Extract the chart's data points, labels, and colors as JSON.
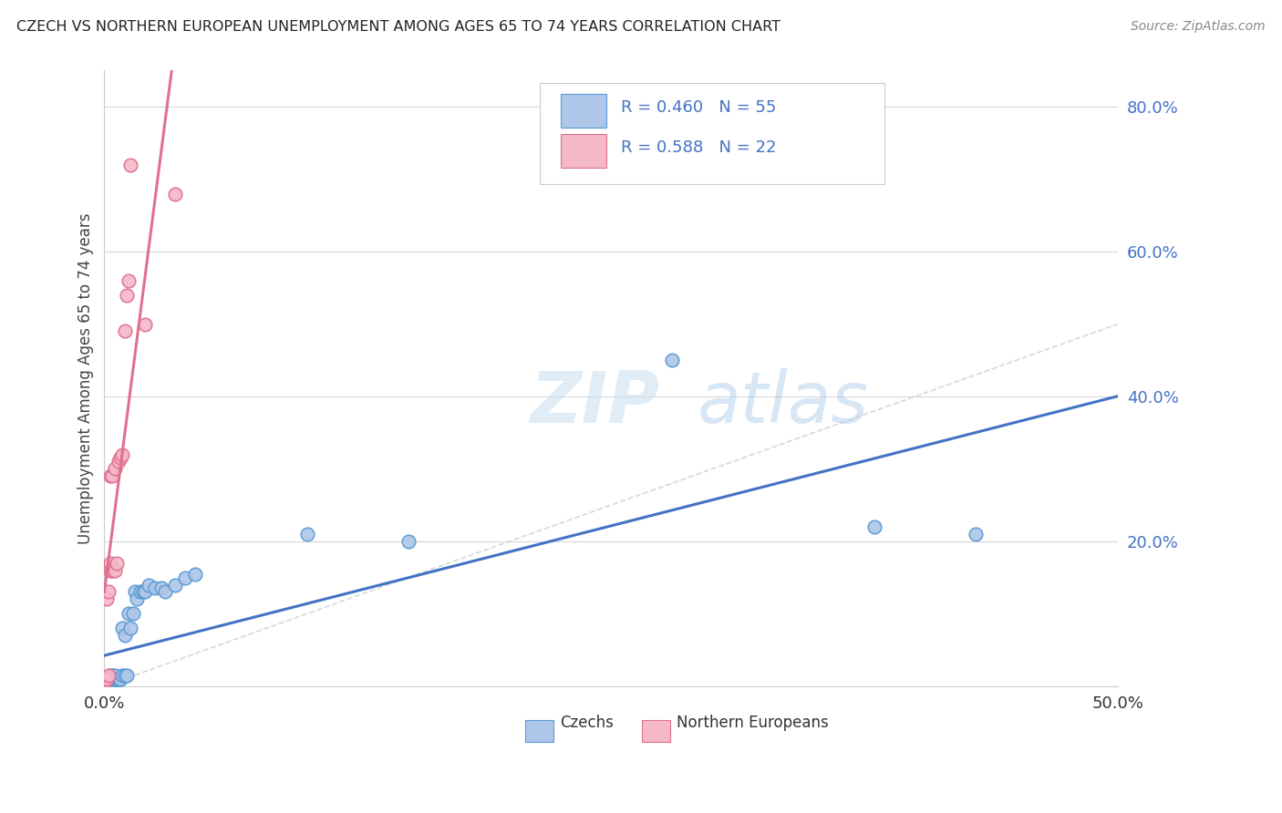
{
  "title": "CZECH VS NORTHERN EUROPEAN UNEMPLOYMENT AMONG AGES 65 TO 74 YEARS CORRELATION CHART",
  "source": "Source: ZipAtlas.com",
  "ylabel": "Unemployment Among Ages 65 to 74 years",
  "yaxis_ticks": [
    "80.0%",
    "60.0%",
    "40.0%",
    "20.0%"
  ],
  "yaxis_tick_vals": [
    0.8,
    0.6,
    0.4,
    0.2
  ],
  "xlim": [
    0.0,
    0.5
  ],
  "ylim": [
    0.0,
    0.85
  ],
  "czech_color": "#aec6e8",
  "czech_edge_color": "#5b9bd5",
  "northern_color": "#f4b8c8",
  "northern_edge_color": "#e07090",
  "trendline_czech_color": "#4472c4",
  "trendline_northern_color": "#e07090",
  "trendline_diagonal_color": "#c8c8c8",
  "legend_text_color": "#4472c4",
  "R_czech": "0.460",
  "N_czech": "55",
  "R_northern": "0.588",
  "N_northern": "22",
  "czechs_x": [
    0.0,
    0.0,
    0.0,
    0.0,
    0.001,
    0.001,
    0.001,
    0.001,
    0.001,
    0.002,
    0.002,
    0.002,
    0.002,
    0.003,
    0.003,
    0.003,
    0.003,
    0.004,
    0.004,
    0.004,
    0.004,
    0.005,
    0.005,
    0.005,
    0.006,
    0.006,
    0.007,
    0.007,
    0.008,
    0.008,
    0.009,
    0.009,
    0.01,
    0.01,
    0.011,
    0.012,
    0.013,
    0.014,
    0.015,
    0.016,
    0.018,
    0.019,
    0.02,
    0.022,
    0.025,
    0.028,
    0.03,
    0.035,
    0.04,
    0.045,
    0.1,
    0.15,
    0.28,
    0.38,
    0.43
  ],
  "czechs_y": [
    0.005,
    0.005,
    0.005,
    0.005,
    0.005,
    0.005,
    0.005,
    0.01,
    0.005,
    0.005,
    0.005,
    0.005,
    0.01,
    0.01,
    0.005,
    0.01,
    0.015,
    0.01,
    0.005,
    0.015,
    0.01,
    0.01,
    0.01,
    0.015,
    0.01,
    0.01,
    0.01,
    0.01,
    0.01,
    0.01,
    0.015,
    0.08,
    0.015,
    0.07,
    0.015,
    0.1,
    0.08,
    0.1,
    0.13,
    0.12,
    0.13,
    0.13,
    0.13,
    0.14,
    0.135,
    0.135,
    0.13,
    0.14,
    0.15,
    0.155,
    0.21,
    0.2,
    0.45,
    0.22,
    0.21
  ],
  "northern_x": [
    0.0,
    0.001,
    0.001,
    0.002,
    0.002,
    0.003,
    0.003,
    0.003,
    0.004,
    0.004,
    0.005,
    0.005,
    0.006,
    0.007,
    0.008,
    0.009,
    0.01,
    0.011,
    0.012,
    0.013,
    0.02,
    0.035
  ],
  "northern_y": [
    0.005,
    0.01,
    0.12,
    0.015,
    0.13,
    0.16,
    0.17,
    0.29,
    0.16,
    0.29,
    0.16,
    0.3,
    0.17,
    0.31,
    0.315,
    0.32,
    0.49,
    0.54,
    0.56,
    0.72,
    0.5,
    0.68
  ]
}
